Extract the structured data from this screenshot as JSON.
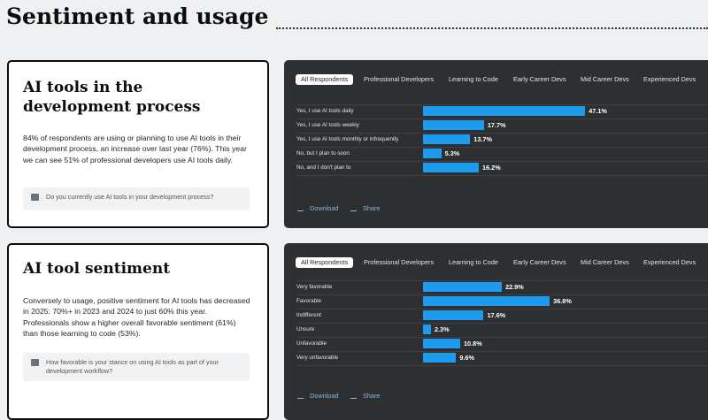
{
  "header": {
    "title": "Sentiment and usage"
  },
  "cards": [
    {
      "title": "AI tools in the development process",
      "text": "84% of respondents are using or planning to use AI tools in their development process, an increase over last year (76%). This year we can see 51% of professional developers use AI tools daily.",
      "question": "Do you currently use AI tools in your development process?"
    },
    {
      "title": "AI tool sentiment",
      "text": "Conversely to usage, positive sentiment for AI tools has decreased in 2025: 70%+ in 2023 and 2024 to just 60% this year. Professionals show a higher overall favorable sentiment (61%) than those learning to code (53%).",
      "question": "How favorable is your stance on using AI tools as part of your development workflow?"
    }
  ],
  "panels": [
    {
      "tabs": [
        "All Respondents",
        "Professional Developers",
        "Learning to Code",
        "Early Career Devs",
        "Mid Career Devs",
        "Experienced Devs"
      ],
      "actions": [
        "Download",
        "Share"
      ]
    },
    {
      "tabs": [
        "All Respondents",
        "Professional Developers",
        "Learning to Code",
        "Early Career Devs",
        "Mid Career Devs",
        "Experienced Devs"
      ],
      "actions": [
        "Download",
        "Share"
      ]
    }
  ],
  "chart_data": [
    {
      "type": "bar",
      "orientation": "horizontal",
      "color": "#1d9bf0",
      "categories": [
        "Yes, I use AI tools daily",
        "Yes, I use AI tools weekly",
        "Yes, I use AI tools monthly or infrequently",
        "No, but I plan to soon",
        "No, and I don't plan to"
      ],
      "values": [
        47.1,
        17.7,
        13.7,
        5.3,
        16.2
      ],
      "value_labels": [
        "47.1%",
        "17.7%",
        "13.7%",
        "5.3%",
        "16.2%"
      ]
    },
    {
      "type": "bar",
      "orientation": "horizontal",
      "color": "#1d9bf0",
      "categories": [
        "Very favorable",
        "Favorable",
        "Indifferent",
        "Unsure",
        "Unfavorable",
        "Very unfavorable"
      ],
      "values": [
        22.9,
        36.8,
        17.6,
        2.3,
        10.8,
        9.6
      ],
      "value_labels": [
        "22.9%",
        "36.8%",
        "17.6%",
        "2.3%",
        "10.8%",
        "9.6%"
      ]
    }
  ]
}
